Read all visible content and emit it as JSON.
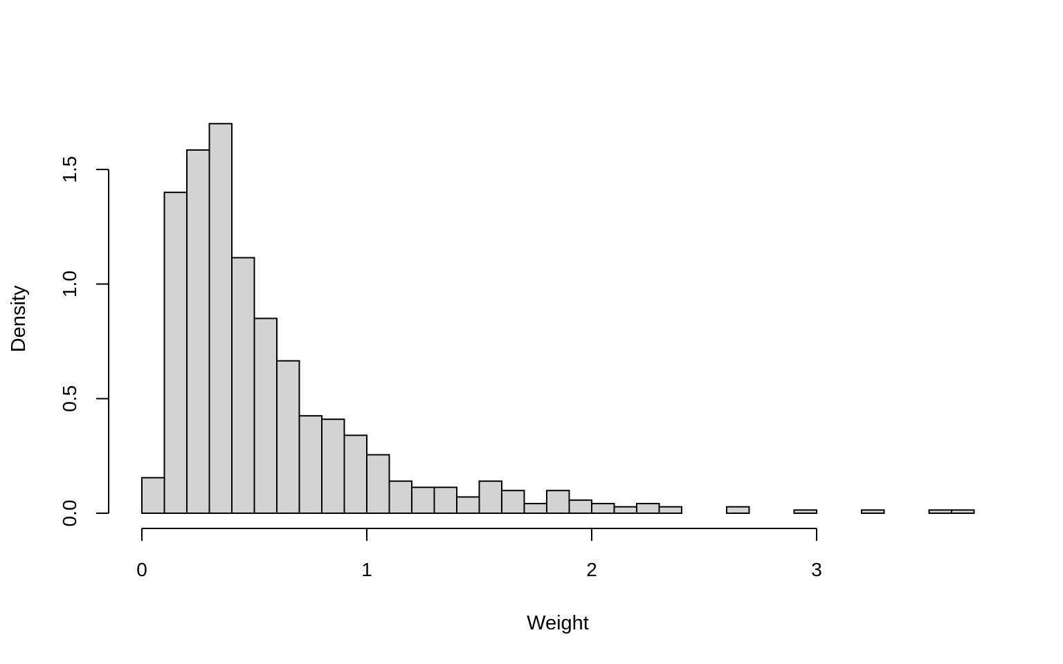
{
  "chart_data": {
    "type": "bar",
    "subtype": "histogram",
    "xlabel": "Weight",
    "ylabel": "Density",
    "bar_color": "#d3d3d3",
    "edge_color": "#000000",
    "bin_width": 0.1,
    "bin_start": 0.0,
    "values": [
      0.155,
      1.4,
      1.585,
      1.7,
      1.115,
      0.85,
      0.665,
      0.425,
      0.41,
      0.34,
      0.255,
      0.14,
      0.113,
      0.113,
      0.071,
      0.14,
      0.099,
      0.042,
      0.099,
      0.057,
      0.042,
      0.028,
      0.042,
      0.028,
      0.0,
      0.0,
      0.028,
      0.0,
      0.0,
      0.014,
      0.0,
      0.0,
      0.014,
      0.0,
      0.0,
      0.014,
      0.014
    ],
    "xlim": [
      0,
      3
    ],
    "ylim": [
      0,
      1.5
    ],
    "x_ticks": [
      0,
      1,
      2,
      3
    ],
    "x_tick_labels": [
      "0",
      "1",
      "2",
      "3"
    ],
    "y_ticks": [
      0,
      0.5,
      1.0,
      1.5
    ],
    "y_tick_labels": [
      "0.0",
      "0.5",
      "1.0",
      "1.5"
    ],
    "grid": false,
    "legend": "none"
  }
}
